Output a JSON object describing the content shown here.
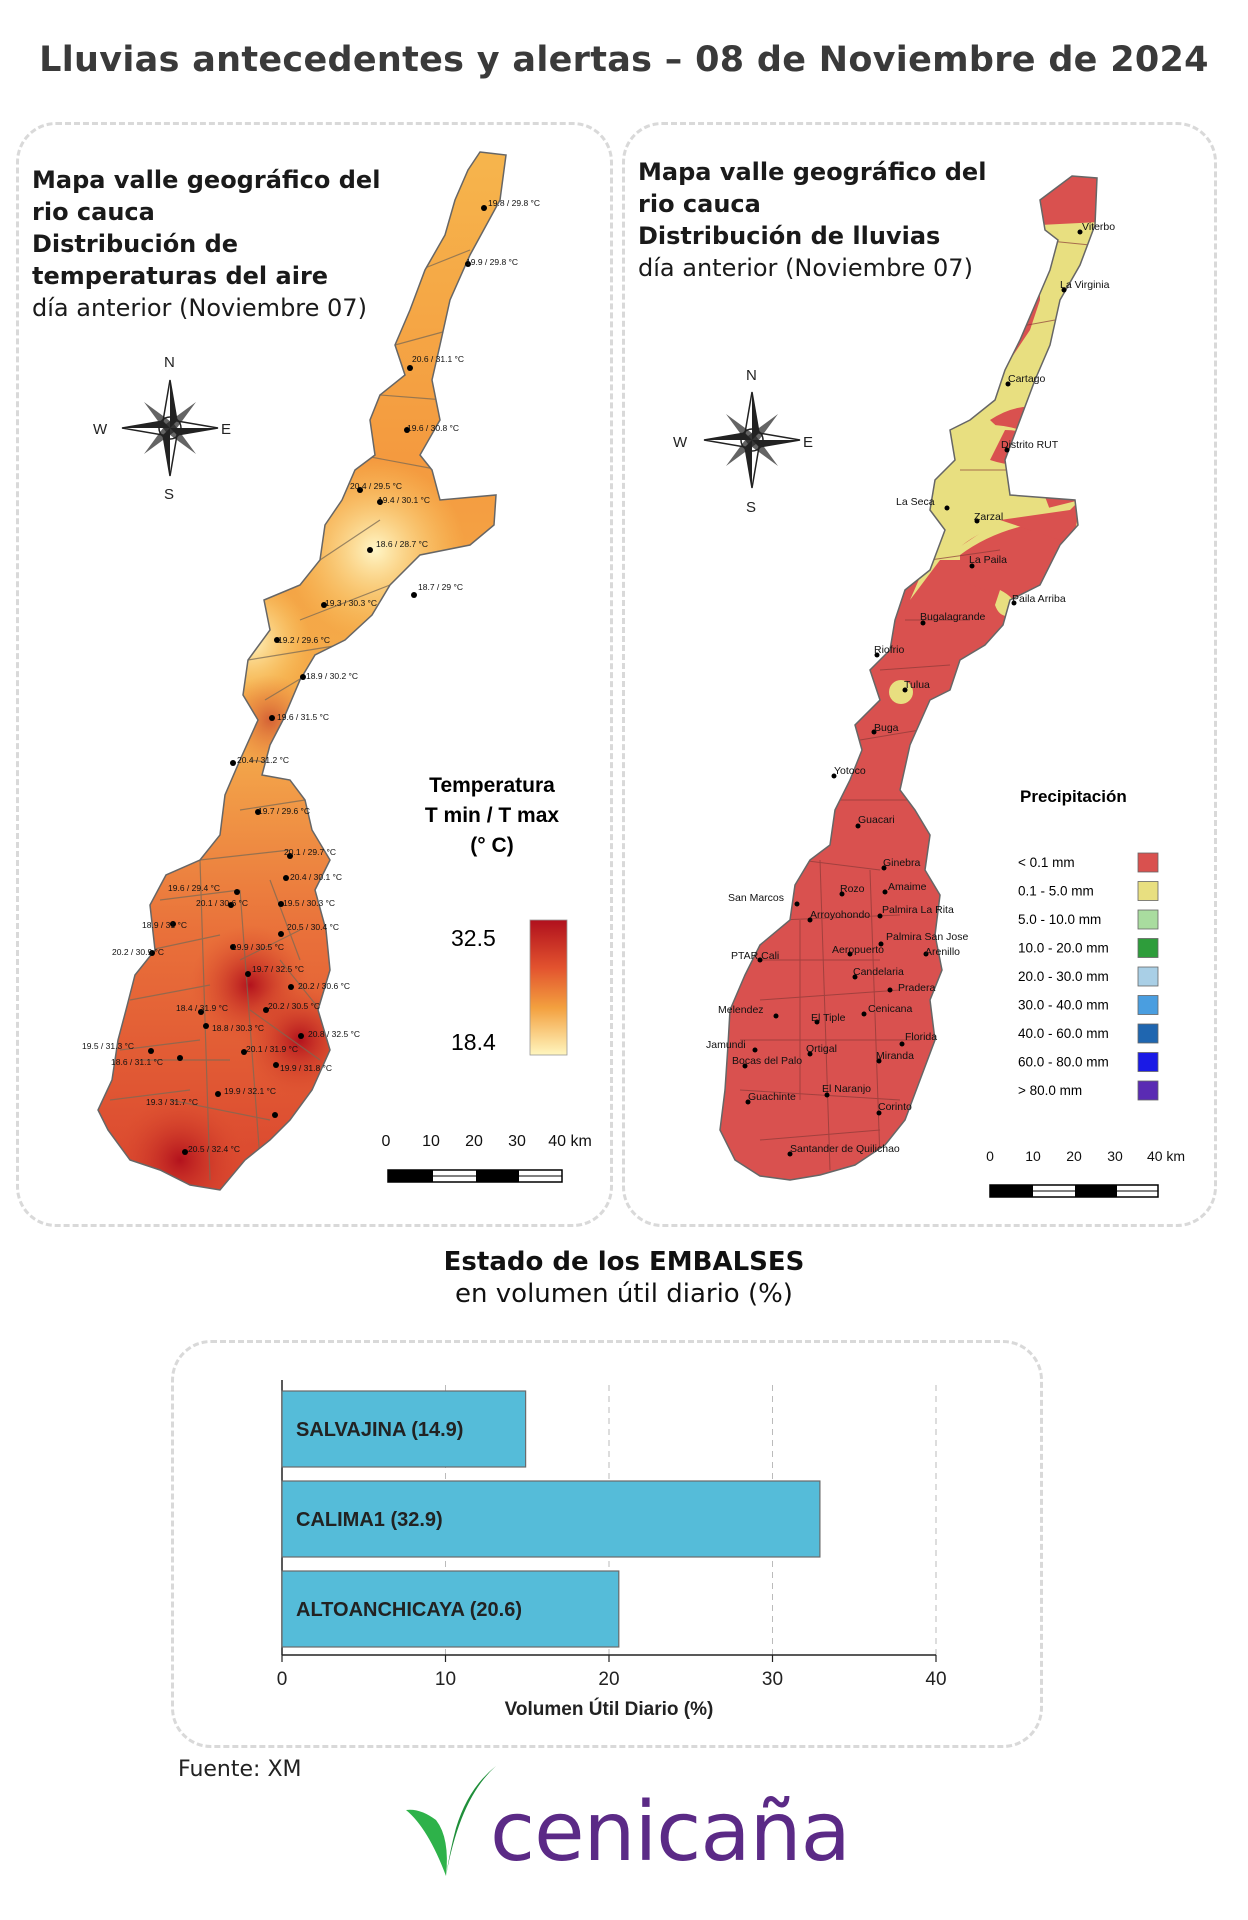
{
  "title": "Lluvias antecedentes y alertas – 08 de Noviembre de 2024",
  "temp_map": {
    "heading_lines": [
      "Mapa valle geográfico del",
      "rio cauca",
      "Distribución de",
      "temperaturas del aire"
    ],
    "subheading": "día anterior (Noviembre 07)",
    "compass": {
      "n": "N",
      "s": "S",
      "e": "E",
      "w": "W"
    },
    "legend_title_lines": [
      "Temperatura",
      "T min / T max",
      "(° C)"
    ],
    "legend_max": "32.5",
    "legend_min": "18.4",
    "scale_labels": [
      "0",
      "10",
      "20",
      "30",
      "40 km"
    ],
    "stations": [
      "19.8 / 29.8 °C",
      "19.9 / 29.8 °C",
      "20.6 / 31.1 °C",
      "19.6 / 30.8 °C",
      "20.4 / 29.5 °C",
      "19.4 / 30.1 °C",
      "18.6 / 28.7 °C",
      "18.7 / 29 °C",
      "19.3 / 30.3 °C",
      "19.2 / 29.6 °C",
      "18.9 / 30.2 °C",
      "19.6 / 31.5 °C",
      "20.4 / 31.2 °C",
      "19.7 / 29.6 °C",
      "20.1 / 29.7 °C",
      "20.4 / 30.1 °C",
      "19.6 / 29.4 °C",
      "20.1 / 30.6 °C",
      "19.5 / 30.3 °C",
      "18.9 / 31 °C",
      "20.5 / 30.4 °C",
      "20.2 / 30.9 °C",
      "19.9 / 30.5 °C",
      "19.7 / 32.5 °C",
      "20.2 / 30.6 °C",
      "18.4 / 31.9 °C",
      "20.2 / 30.5 °C",
      "18.8 / 30.3 °C",
      "20.8 / 32.5 °C",
      "19.5 / 31.3 °C",
      "20.1 / 31.9 °C",
      "18.6 / 31.1 °C",
      "19.9 / 31.8 °C",
      "19.9 / 32.1 °C",
      "19.3 / 31.7 °C",
      "20.5 / 32.4 °C"
    ]
  },
  "rain_map": {
    "heading_lines": [
      "Mapa valle geográfico del",
      "rio cauca"
    ],
    "heading_bold": "Distribución de lluvias",
    "subheading": "día anterior (Noviembre 07)",
    "compass": {
      "n": "N",
      "s": "S",
      "e": "E",
      "w": "W"
    },
    "legend_title": "Precipitación",
    "legend": [
      {
        "label": "< 0.1 mm",
        "color": "#d9514f"
      },
      {
        "label": "0.1 - 5.0 mm",
        "color": "#e8df80"
      },
      {
        "label": "5.0 - 10.0 mm",
        "color": "#a9dc9f"
      },
      {
        "label": "10.0 - 20.0 mm",
        "color": "#2e9d3b"
      },
      {
        "label": "20.0 - 30.0 mm",
        "color": "#a9cfe6"
      },
      {
        "label": "30.0 - 40.0 mm",
        "color": "#4a9ee0"
      },
      {
        "label": "40.0 - 60.0 mm",
        "color": "#1f66b0"
      },
      {
        "label": "60.0 - 80.0 mm",
        "color": "#1a1ae6"
      },
      {
        "label": "> 80.0 mm",
        "color": "#5a2bb3"
      }
    ],
    "scale_labels": [
      "0",
      "10",
      "20",
      "30",
      "40 km"
    ],
    "places": [
      "Viterbo",
      "La Virginia",
      "Cartago",
      "Distrito RUT",
      "La Seca",
      "Zarzal",
      "La Paila",
      "Paila Arriba",
      "Bugalagrande",
      "Riofrio",
      "Tulua",
      "Buga",
      "Yotoco",
      "Guacari",
      "Ginebra",
      "Amaime",
      "San Marcos",
      "Rozo",
      "Palmira La Rita",
      "Arroyohondo",
      "Palmira San Jose",
      "Aeropuerto",
      "Arenillo",
      "PTAR Cali",
      "Candelaria",
      "Pradera",
      "Melendez",
      "El Tiple",
      "Cenicana",
      "Florida",
      "Jamundi",
      "Bocas del Palo",
      "Ortigal",
      "Miranda",
      "El Naranjo",
      "Guachinte",
      "Corinto",
      "Santander de Quilichao"
    ]
  },
  "reservoirs": {
    "title": "Estado de los EMBALSES",
    "subtitle": "en volumen útil diario (%)"
  },
  "chart_data": {
    "type": "bar",
    "orientation": "horizontal",
    "categories": [
      "SALVAJINA",
      "CALIMA1",
      "ALTOANCHICAYA"
    ],
    "values": [
      14.9,
      32.9,
      20.6
    ],
    "bar_labels": [
      "SALVAJINA (14.9)",
      "CALIMA1 (32.9)",
      "ALTOANCHICAYA (20.6)"
    ],
    "xlabel": "Volumen Útil Diario (%)",
    "ylabel": "",
    "xlim": [
      0,
      40
    ],
    "xticks": [
      "0",
      "10",
      "20",
      "30",
      "40"
    ],
    "grid": true,
    "bar_color": "#55bcd9"
  },
  "source": "Fuente: XM",
  "logo": {
    "text": "cenicaña"
  }
}
